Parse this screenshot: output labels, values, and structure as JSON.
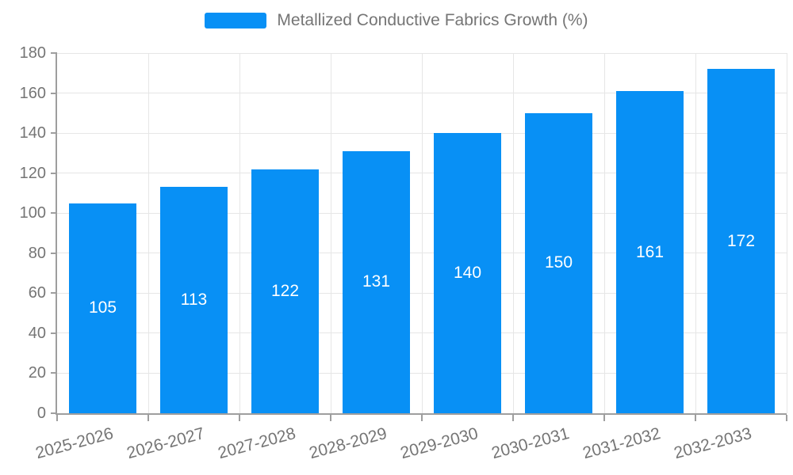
{
  "legend": {
    "label": "Metallized Conductive Fabrics Growth (%)"
  },
  "chart_data": {
    "type": "bar",
    "title": "Metallized Conductive Fabrics Growth (%)",
    "categories": [
      "2025-2026",
      "2026-2027",
      "2027-2028",
      "2028-2029",
      "2029-2030",
      "2030-2031",
      "2031-2032",
      "2032-2033"
    ],
    "values": [
      105,
      113,
      122,
      131,
      140,
      150,
      161,
      172
    ],
    "xlabel": "",
    "ylabel": "",
    "ylim": [
      0,
      180
    ],
    "ytick_step": 20,
    "grid": true,
    "legend_position": "top",
    "bar_color": "#0890F5",
    "value_label_color": "#ffffff",
    "grid_color": "#e6e6e6",
    "axis_color": "#9e9e9e",
    "text_color": "#757575"
  }
}
